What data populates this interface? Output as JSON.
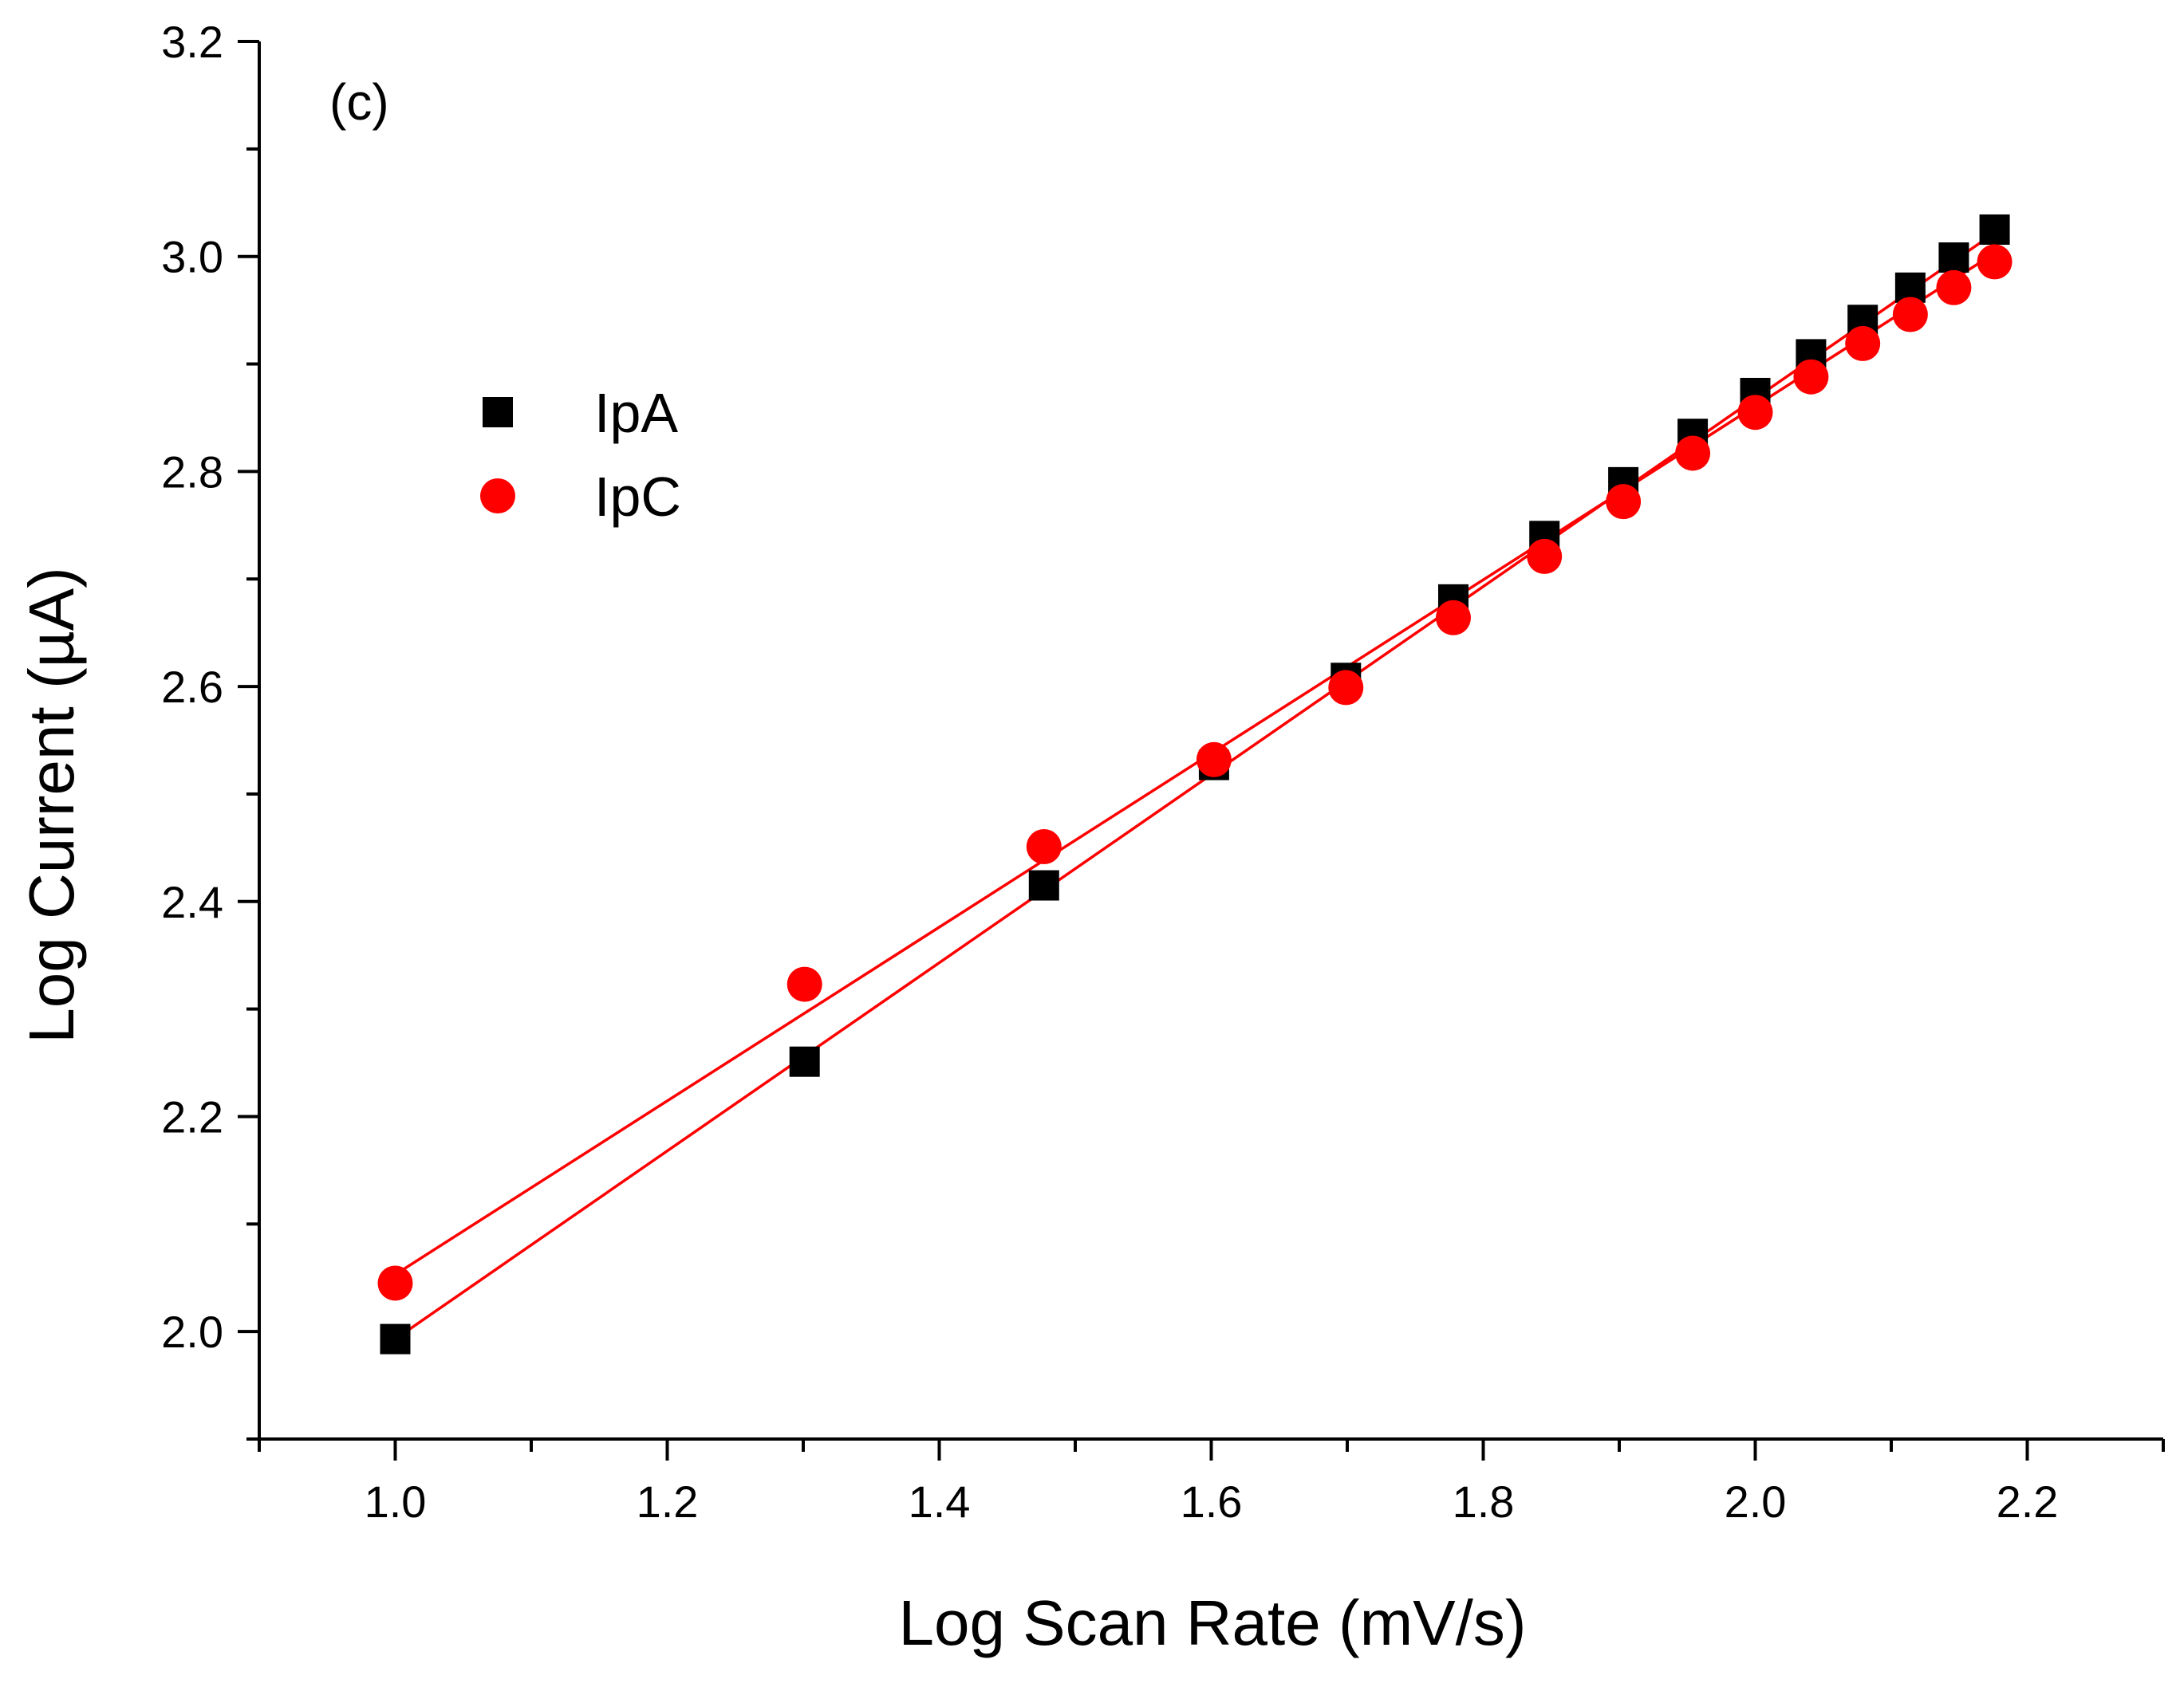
{
  "chart_data": {
    "type": "scatter",
    "panel_label": "(c)",
    "xlabel": "Log Scan Rate (mV/s)",
    "ylabel": "Log Current (µA)",
    "xlim": [
      0.9,
      2.3
    ],
    "ylim": [
      1.9,
      3.2
    ],
    "x_ticks": [
      1.0,
      1.2,
      1.4,
      1.6,
      1.8,
      2.0,
      2.2
    ],
    "x_tick_labels": [
      "1.0",
      "1.2",
      "1.4",
      "1.6",
      "1.8",
      "2.0",
      "2.2"
    ],
    "y_ticks": [
      2.0,
      2.2,
      2.4,
      2.6,
      2.8,
      3.0,
      3.2
    ],
    "y_tick_labels": [
      "2.0",
      "2.2",
      "2.4",
      "2.6",
      "2.8",
      "3.0",
      "3.2"
    ],
    "legend_position": "upper-left",
    "fit_color": "#ff0000",
    "series": [
      {
        "name": "IpA",
        "marker": "square",
        "color": "#000000",
        "x": [
          1.0,
          1.301,
          1.477,
          1.602,
          1.699,
          1.778,
          1.845,
          1.903,
          1.954,
          2.0,
          2.041,
          2.079,
          2.114,
          2.146,
          2.176
        ],
        "y": [
          1.993,
          2.251,
          2.415,
          2.527,
          2.608,
          2.681,
          2.74,
          2.79,
          2.835,
          2.873,
          2.909,
          2.941,
          2.971,
          2.999,
          3.025
        ],
        "fit": {
          "x": [
            1.0,
            2.176
          ],
          "y": [
            1.993,
            3.022
          ]
        }
      },
      {
        "name": "IpC",
        "marker": "circle",
        "color": "#ff0000",
        "x": [
          1.0,
          1.301,
          1.477,
          1.602,
          1.699,
          1.778,
          1.845,
          1.903,
          1.954,
          2.0,
          2.041,
          2.079,
          2.114,
          2.146,
          2.176
        ],
        "y": [
          2.045,
          2.323,
          2.451,
          2.532,
          2.599,
          2.664,
          2.721,
          2.772,
          2.817,
          2.855,
          2.888,
          2.919,
          2.946,
          2.971,
          2.995
        ],
        "fit": {
          "x": [
            1.0,
            2.176
          ],
          "y": [
            2.053,
            3.003
          ]
        }
      }
    ]
  }
}
